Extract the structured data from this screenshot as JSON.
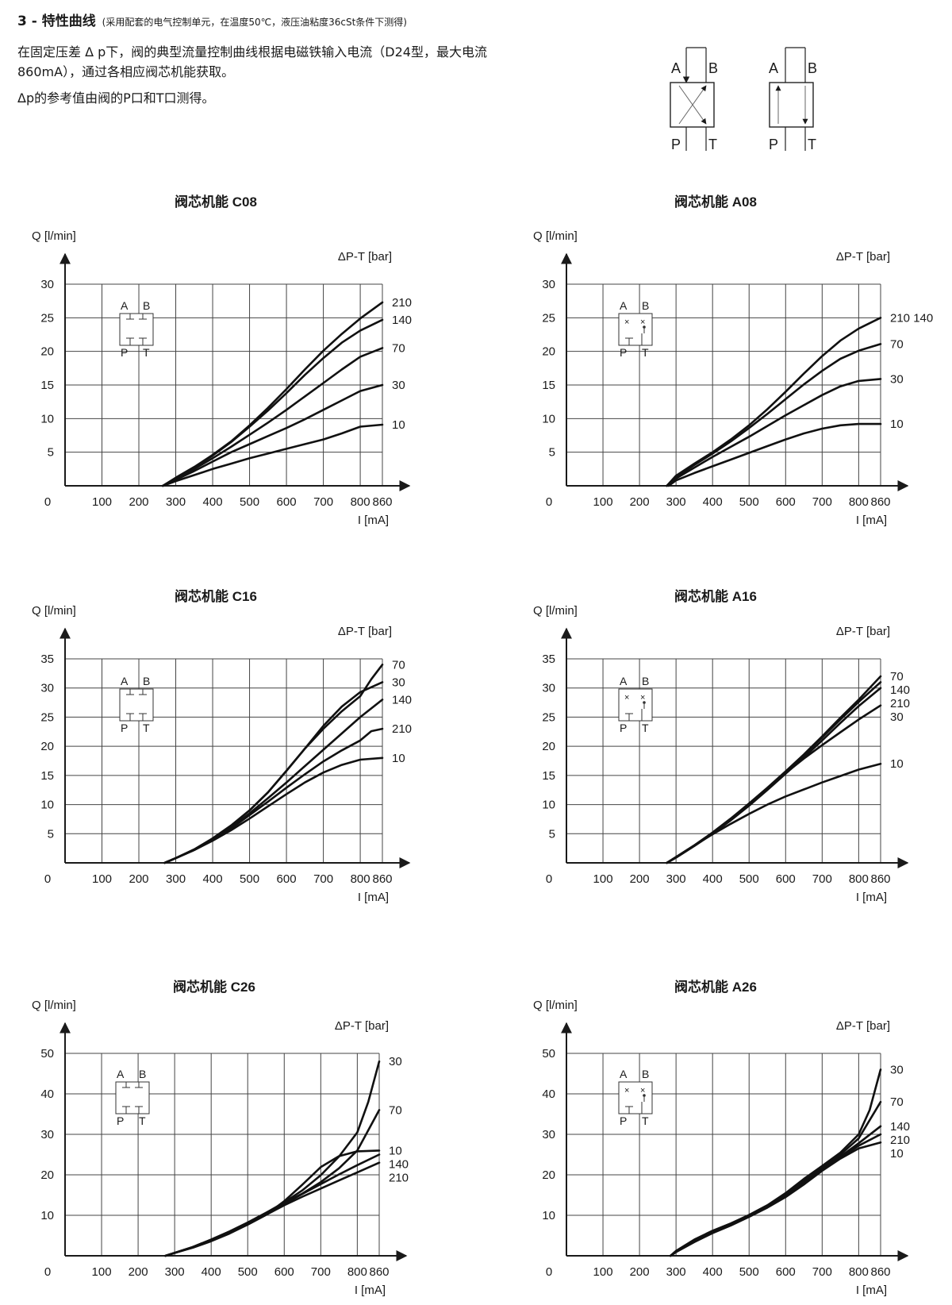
{
  "header": {
    "section_title": "3 - 特性曲线",
    "section_note": "(采用配套的电气控制单元，在温度50℃，液压油粘度36cSt条件下测得)",
    "intro_line1": "在固定压差 Δ p下，阀的典型流量控制曲线根据电磁铁输入电流（D24型，最大电流",
    "intro_line2": "860mA），通过各相应阀芯机能获取。",
    "intro_line3": "Δp的参考值由阀的P口和T口测得。"
  },
  "symbols": {
    "a": "A",
    "b": "B",
    "p": "P",
    "t": "T"
  },
  "chart_data": [
    {
      "type": "line",
      "title": "阀芯机能 C08",
      "ylabel": "Q [l/min]",
      "xlabel": "I [mA]",
      "legend_title": "ΔP-T [bar]",
      "spool": "C",
      "x_ticks": [
        "0",
        "100",
        "200",
        "300",
        "400",
        "500",
        "600",
        "700",
        "800",
        "860"
      ],
      "y_ticks": [
        "5",
        "10",
        "15",
        "20",
        "25",
        "30"
      ],
      "xlim": [
        0,
        860
      ],
      "ylim": [
        0,
        30
      ],
      "series": [
        {
          "name": "210",
          "x": [
            265,
            300,
            350,
            400,
            450,
            500,
            550,
            600,
            650,
            700,
            750,
            800,
            860
          ],
          "y": [
            0,
            1.2,
            2.8,
            4.6,
            6.6,
            9.0,
            11.6,
            14.4,
            17.3,
            20.1,
            22.6,
            24.9,
            27.3
          ]
        },
        {
          "name": "140",
          "x": [
            265,
            300,
            350,
            400,
            450,
            500,
            550,
            600,
            650,
            700,
            750,
            800,
            860
          ],
          "y": [
            0,
            1.1,
            2.7,
            4.5,
            6.5,
            8.8,
            11.2,
            13.8,
            16.5,
            19.0,
            21.3,
            23.1,
            24.7
          ]
        },
        {
          "name": "70",
          "x": [
            265,
            300,
            350,
            400,
            450,
            500,
            550,
            600,
            650,
            700,
            750,
            800,
            860
          ],
          "y": [
            0,
            1.0,
            2.5,
            4.1,
            5.8,
            7.6,
            9.4,
            11.3,
            13.3,
            15.3,
            17.3,
            19.2,
            20.5
          ]
        },
        {
          "name": "30",
          "x": [
            265,
            300,
            350,
            400,
            450,
            500,
            550,
            600,
            650,
            700,
            750,
            800,
            860
          ],
          "y": [
            0,
            0.9,
            2.2,
            3.6,
            5.0,
            6.2,
            7.4,
            8.6,
            9.9,
            11.3,
            12.7,
            14.1,
            15.0
          ]
        },
        {
          "name": "10",
          "x": [
            265,
            300,
            350,
            400,
            450,
            500,
            550,
            600,
            650,
            700,
            750,
            800,
            860
          ],
          "y": [
            0,
            0.7,
            1.6,
            2.5,
            3.3,
            4.1,
            4.8,
            5.5,
            6.2,
            6.9,
            7.8,
            8.8,
            9.1
          ]
        }
      ]
    },
    {
      "type": "line",
      "title": "阀芯机能 A08",
      "ylabel": "Q [l/min]",
      "xlabel": "I [mA]",
      "legend_title": "ΔP-T [bar]",
      "spool": "A",
      "x_ticks": [
        "0",
        "100",
        "200",
        "300",
        "400",
        "500",
        "600",
        "700",
        "800",
        "860"
      ],
      "y_ticks": [
        "5",
        "10",
        "15",
        "20",
        "25",
        "30"
      ],
      "xlim": [
        0,
        860
      ],
      "ylim": [
        0,
        30
      ],
      "series": [
        {
          "name": "210 140",
          "x": [
            275,
            300,
            350,
            400,
            450,
            500,
            550,
            600,
            650,
            700,
            750,
            800,
            860
          ],
          "y": [
            0,
            1.5,
            3.3,
            5.0,
            6.9,
            9.0,
            11.4,
            14.0,
            16.7,
            19.3,
            21.6,
            23.4,
            25.0
          ]
        },
        {
          "name": "70",
          "x": [
            275,
            300,
            350,
            400,
            450,
            500,
            550,
            600,
            650,
            700,
            750,
            800,
            860
          ],
          "y": [
            0,
            1.3,
            3.1,
            4.8,
            6.6,
            8.6,
            10.7,
            12.9,
            15.1,
            17.1,
            18.9,
            20.1,
            21.1
          ]
        },
        {
          "name": "30",
          "x": [
            275,
            300,
            350,
            400,
            450,
            500,
            550,
            600,
            650,
            700,
            750,
            800,
            860
          ],
          "y": [
            0,
            1.1,
            2.7,
            4.3,
            5.8,
            7.3,
            8.9,
            10.5,
            12.0,
            13.5,
            14.8,
            15.6,
            15.9
          ]
        },
        {
          "name": "10",
          "x": [
            280,
            300,
            350,
            400,
            450,
            500,
            550,
            600,
            650,
            700,
            750,
            800,
            860
          ],
          "y": [
            0,
            0.8,
            1.9,
            2.9,
            3.9,
            4.9,
            5.9,
            6.9,
            7.8,
            8.5,
            9.0,
            9.2,
            9.2
          ]
        }
      ]
    },
    {
      "type": "line",
      "title": "阀芯机能 C16",
      "ylabel": "Q [l/min]",
      "xlabel": "I [mA]",
      "legend_title": "ΔP-T [bar]",
      "spool": "C",
      "x_ticks": [
        "0",
        "100",
        "200",
        "300",
        "400",
        "500",
        "600",
        "700",
        "800",
        "860"
      ],
      "y_ticks": [
        "5",
        "10",
        "15",
        "20",
        "25",
        "30",
        "35"
      ],
      "xlim": [
        0,
        860
      ],
      "ylim": [
        0,
        35
      ],
      "series": [
        {
          "name": "70",
          "x": [
            270,
            300,
            350,
            400,
            450,
            500,
            550,
            600,
            650,
            700,
            750,
            800,
            830,
            860
          ],
          "y": [
            0,
            0.8,
            2.3,
            4.2,
            6.4,
            9.0,
            12.1,
            15.8,
            19.6,
            23.0,
            26.0,
            28.6,
            31.5,
            34.0
          ]
        },
        {
          "name": "30",
          "x": [
            270,
            300,
            350,
            400,
            450,
            500,
            550,
            600,
            650,
            700,
            750,
            800,
            860
          ],
          "y": [
            0,
            0.8,
            2.3,
            4.2,
            6.4,
            9.0,
            12.1,
            15.8,
            19.6,
            23.5,
            26.8,
            29.3,
            31.0
          ]
        },
        {
          "name": "140",
          "x": [
            270,
            300,
            350,
            400,
            450,
            500,
            550,
            600,
            650,
            700,
            750,
            800,
            860
          ],
          "y": [
            0,
            0.8,
            2.2,
            4.0,
            6.1,
            8.5,
            11.1,
            13.8,
            16.6,
            19.4,
            22.2,
            25.0,
            28.0
          ]
        },
        {
          "name": "210",
          "x": [
            270,
            300,
            350,
            400,
            450,
            500,
            550,
            600,
            650,
            700,
            750,
            800,
            830,
            860
          ],
          "y": [
            0,
            0.8,
            2.2,
            3.9,
            5.9,
            8.2,
            10.5,
            12.9,
            15.2,
            17.4,
            19.3,
            21.0,
            22.6,
            23.0
          ]
        },
        {
          "name": "10",
          "x": [
            270,
            300,
            350,
            400,
            450,
            500,
            550,
            600,
            650,
            700,
            750,
            800,
            860
          ],
          "y": [
            0,
            0.8,
            2.2,
            3.8,
            5.6,
            7.6,
            9.7,
            11.8,
            13.8,
            15.5,
            16.8,
            17.7,
            18.0
          ]
        }
      ]
    },
    {
      "type": "line",
      "title": "阀芯机能  A16",
      "ylabel": "Q [l/min]",
      "xlabel": "I [mA]",
      "legend_title": "ΔP-T [bar]",
      "spool": "A",
      "x_ticks": [
        "0",
        "100",
        "200",
        "300",
        "400",
        "500",
        "600",
        "700",
        "800",
        "860"
      ],
      "y_ticks": [
        "5",
        "10",
        "15",
        "20",
        "25",
        "30",
        "35"
      ],
      "xlim": [
        0,
        860
      ],
      "ylim": [
        0,
        35
      ],
      "series": [
        {
          "name": "70",
          "x": [
            275,
            300,
            350,
            400,
            450,
            500,
            550,
            600,
            650,
            700,
            750,
            800,
            860
          ],
          "y": [
            0,
            1.0,
            3.0,
            5.2,
            7.6,
            10.2,
            12.9,
            15.7,
            18.6,
            21.7,
            24.9,
            28.0,
            32.0
          ]
        },
        {
          "name": "140",
          "x": [
            275,
            300,
            350,
            400,
            450,
            500,
            550,
            600,
            650,
            700,
            750,
            800,
            860
          ],
          "y": [
            0,
            1.0,
            3.0,
            5.2,
            7.6,
            10.1,
            12.8,
            15.6,
            18.5,
            21.5,
            24.6,
            27.6,
            31.0
          ]
        },
        {
          "name": "210",
          "x": [
            275,
            300,
            350,
            400,
            450,
            500,
            550,
            600,
            650,
            700,
            750,
            800,
            860
          ],
          "y": [
            0,
            0.9,
            2.9,
            5.0,
            7.3,
            9.8,
            12.5,
            15.3,
            18.1,
            21.0,
            24.0,
            26.9,
            30.0
          ]
        },
        {
          "name": "30",
          "x": [
            275,
            300,
            350,
            400,
            450,
            500,
            550,
            600,
            650,
            700,
            750,
            800,
            860
          ],
          "y": [
            0,
            0.9,
            2.9,
            5.0,
            7.4,
            10.0,
            12.7,
            15.4,
            17.9,
            20.2,
            22.4,
            24.6,
            27.0
          ]
        },
        {
          "name": "10",
          "x": [
            275,
            300,
            350,
            400,
            450,
            500,
            550,
            600,
            650,
            700,
            750,
            800,
            860
          ],
          "y": [
            0,
            1.0,
            3.0,
            4.9,
            6.7,
            8.4,
            10.0,
            11.4,
            12.6,
            13.8,
            14.9,
            16.0,
            17.0
          ]
        }
      ]
    },
    {
      "type": "line",
      "title": "阀芯机能 C26",
      "ylabel": "Q [l/min]",
      "xlabel": "I [mA]",
      "legend_title": "ΔP-T [bar]",
      "spool": "C",
      "x_ticks": [
        "0",
        "100",
        "200",
        "300",
        "400",
        "500",
        "600",
        "700",
        "800",
        "860"
      ],
      "y_ticks": [
        "10",
        "20",
        "30",
        "40",
        "50"
      ],
      "xlim": [
        0,
        860
      ],
      "ylim": [
        0,
        50
      ],
      "series": [
        {
          "name": "30",
          "x": [
            275,
            300,
            350,
            400,
            450,
            500,
            550,
            600,
            650,
            700,
            750,
            800,
            830,
            860
          ],
          "y": [
            0,
            0.7,
            2.2,
            4.0,
            6.0,
            8.2,
            10.6,
            13.2,
            16.2,
            19.9,
            24.5,
            30.5,
            38.0,
            48.0
          ]
        },
        {
          "name": "70",
          "x": [
            275,
            300,
            350,
            400,
            450,
            500,
            550,
            600,
            650,
            700,
            750,
            800,
            860
          ],
          "y": [
            0,
            0.7,
            2.2,
            4.0,
            6.0,
            8.2,
            10.6,
            13.0,
            15.4,
            18.2,
            21.6,
            26.0,
            36.0
          ]
        },
        {
          "name": "10",
          "x": [
            275,
            300,
            350,
            400,
            450,
            500,
            550,
            600,
            650,
            700,
            750,
            800,
            860
          ],
          "y": [
            0,
            0.7,
            2.1,
            3.8,
            5.7,
            7.7,
            10.1,
            13.5,
            17.6,
            21.9,
            24.6,
            25.8,
            26.0
          ]
        },
        {
          "name": "140",
          "x": [
            275,
            300,
            350,
            400,
            450,
            500,
            550,
            600,
            650,
            700,
            750,
            800,
            860
          ],
          "y": [
            0,
            0.7,
            2.1,
            3.8,
            5.7,
            7.9,
            10.3,
            12.8,
            15.3,
            17.7,
            20.1,
            22.4,
            25.0
          ]
        },
        {
          "name": "210",
          "x": [
            275,
            300,
            350,
            400,
            450,
            500,
            550,
            600,
            650,
            700,
            750,
            800,
            860
          ],
          "y": [
            0,
            0.7,
            2.0,
            3.6,
            5.5,
            7.7,
            10.1,
            12.5,
            14.6,
            16.6,
            18.6,
            20.6,
            23.0
          ]
        }
      ]
    },
    {
      "type": "line",
      "title": "阀芯机能 A26",
      "ylabel": "Q [l/min]",
      "xlabel": "I [mA]",
      "legend_title": "ΔP-T [bar]",
      "spool": "A",
      "x_ticks": [
        "0",
        "100",
        "200",
        "300",
        "400",
        "500",
        "600",
        "700",
        "800",
        "860"
      ],
      "y_ticks": [
        "10",
        "20",
        "30",
        "40",
        "50"
      ],
      "xlim": [
        0,
        860
      ],
      "ylim": [
        0,
        50
      ],
      "series": [
        {
          "name": "30",
          "x": [
            285,
            300,
            350,
            400,
            450,
            500,
            550,
            600,
            650,
            700,
            750,
            800,
            830,
            860
          ],
          "y": [
            0,
            1.2,
            4.0,
            6.2,
            8.0,
            10.1,
            12.5,
            15.5,
            19.0,
            22.2,
            25.5,
            30.0,
            36.0,
            46.0
          ]
        },
        {
          "name": "70",
          "x": [
            285,
            300,
            350,
            400,
            450,
            500,
            550,
            600,
            650,
            700,
            750,
            800,
            860
          ],
          "y": [
            0,
            1.1,
            3.8,
            6.0,
            7.9,
            10.0,
            12.3,
            15.1,
            18.5,
            21.9,
            25.0,
            29.0,
            38.0
          ]
        },
        {
          "name": "140",
          "x": [
            285,
            300,
            350,
            400,
            450,
            500,
            550,
            600,
            650,
            700,
            750,
            800,
            860
          ],
          "y": [
            0,
            1.0,
            3.6,
            5.8,
            7.7,
            9.8,
            12.1,
            14.8,
            18.1,
            21.5,
            24.5,
            27.8,
            32.0
          ]
        },
        {
          "name": "210",
          "x": [
            285,
            300,
            350,
            400,
            450,
            500,
            550,
            600,
            650,
            700,
            750,
            800,
            860
          ],
          "y": [
            0,
            1.0,
            3.5,
            5.7,
            7.6,
            9.7,
            12.0,
            14.6,
            17.8,
            21.2,
            24.2,
            27.2,
            30.0
          ]
        },
        {
          "name": "10",
          "x": [
            285,
            300,
            350,
            400,
            450,
            500,
            550,
            600,
            650,
            700,
            750,
            800,
            860
          ],
          "y": [
            0,
            0.9,
            3.4,
            5.6,
            7.5,
            9.6,
            11.9,
            14.5,
            17.6,
            21.0,
            24.0,
            26.5,
            28.0
          ]
        }
      ]
    }
  ]
}
